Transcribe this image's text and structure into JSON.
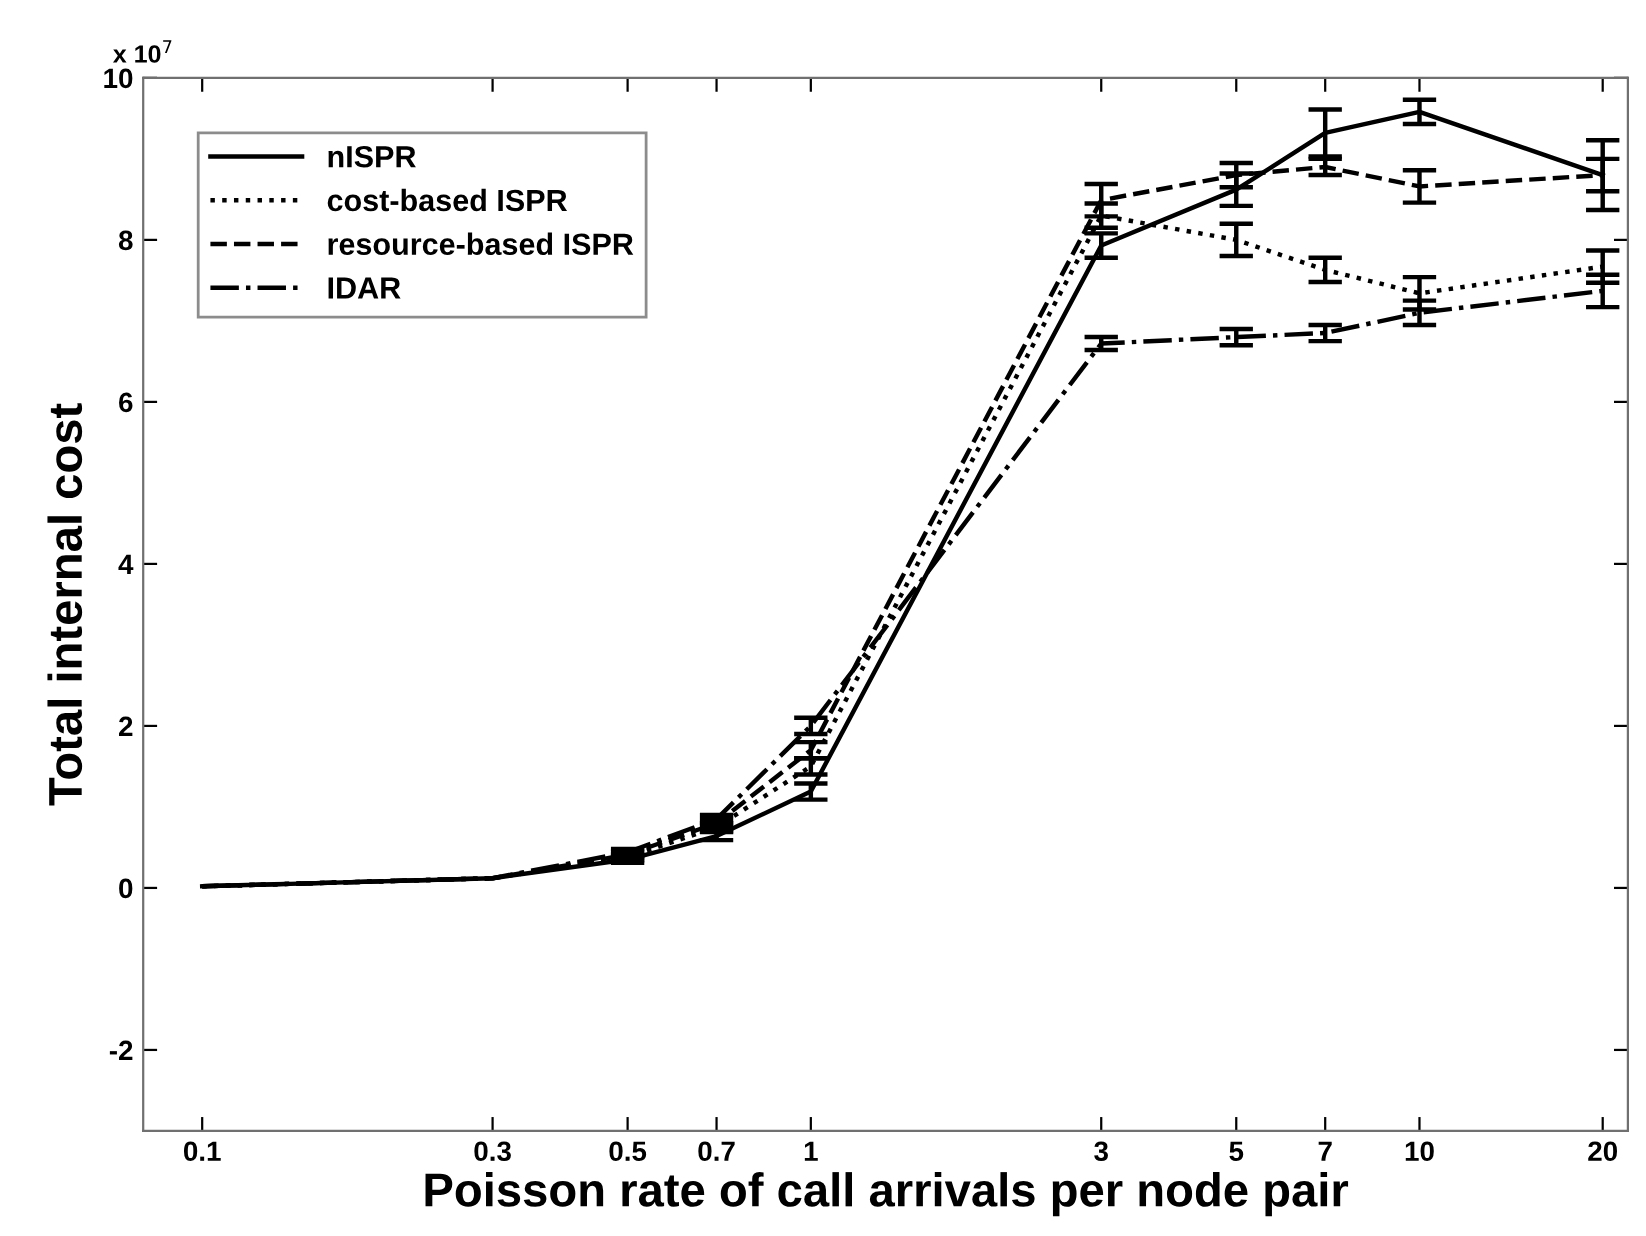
{
  "chart_data": {
    "type": "line",
    "xlabel": "Poisson rate of call arrivals per node pair",
    "ylabel": "Total internal cost",
    "annotations": [
      "x 10$^{7}$"
    ],
    "log": "x",
    "x": [
      0.1,
      0.3,
      0.5,
      0.7,
      1,
      3,
      5,
      7,
      10,
      20
    ],
    "xlim": [
      0.08,
      22
    ],
    "xticks": [
      0.1,
      0.3,
      0.5,
      0.7,
      1,
      3,
      5,
      7,
      10,
      20
    ],
    "ylim": [
      -3,
      10
    ],
    "yticks": [
      -2,
      0,
      2,
      4,
      6,
      8,
      10
    ],
    "grid": false,
    "legend": "top left",
    "marker": "none",
    "series": [
      {
        "name": "nISPR",
        "color": "#000000",
        "line_style": "solid",
        "values": [
          0.02,
          0.12,
          0.35,
          0.64,
          1.19,
          7.93,
          8.62,
          9.32,
          9.58,
          8.8
        ],
        "errors": [
          null,
          null,
          0.04,
          0.05,
          0.1,
          0.15,
          0.2,
          0.29,
          0.15,
          0.43
        ]
      },
      {
        "name": "cost-based ISPR",
        "color": "#000000",
        "line_style": "dotted",
        "values": [
          0.02,
          0.12,
          0.38,
          0.75,
          1.5,
          8.3,
          8.0,
          7.63,
          7.34,
          7.67
        ],
        "errors": [
          null,
          null,
          0.04,
          0.05,
          0.1,
          0.15,
          0.2,
          0.15,
          0.2,
          0.2
        ]
      },
      {
        "name": "resource-based ISPR",
        "color": "#000000",
        "line_style": "dashed",
        "values": [
          0.02,
          0.12,
          0.41,
          0.8,
          1.7,
          8.49,
          8.8,
          8.9,
          8.66,
          8.8
        ],
        "errors": [
          null,
          null,
          0.04,
          0.05,
          0.1,
          0.2,
          0.15,
          0.1,
          0.2,
          0.2
        ]
      },
      {
        "name": "IDAR",
        "color": "#000000",
        "line_style": "dashdot",
        "values": [
          0.02,
          0.12,
          0.44,
          0.85,
          2.0,
          6.72,
          6.8,
          6.85,
          7.1,
          7.37
        ],
        "errors": [
          null,
          null,
          0.04,
          0.05,
          0.1,
          0.08,
          0.1,
          0.1,
          0.15,
          0.2
        ]
      }
    ]
  }
}
